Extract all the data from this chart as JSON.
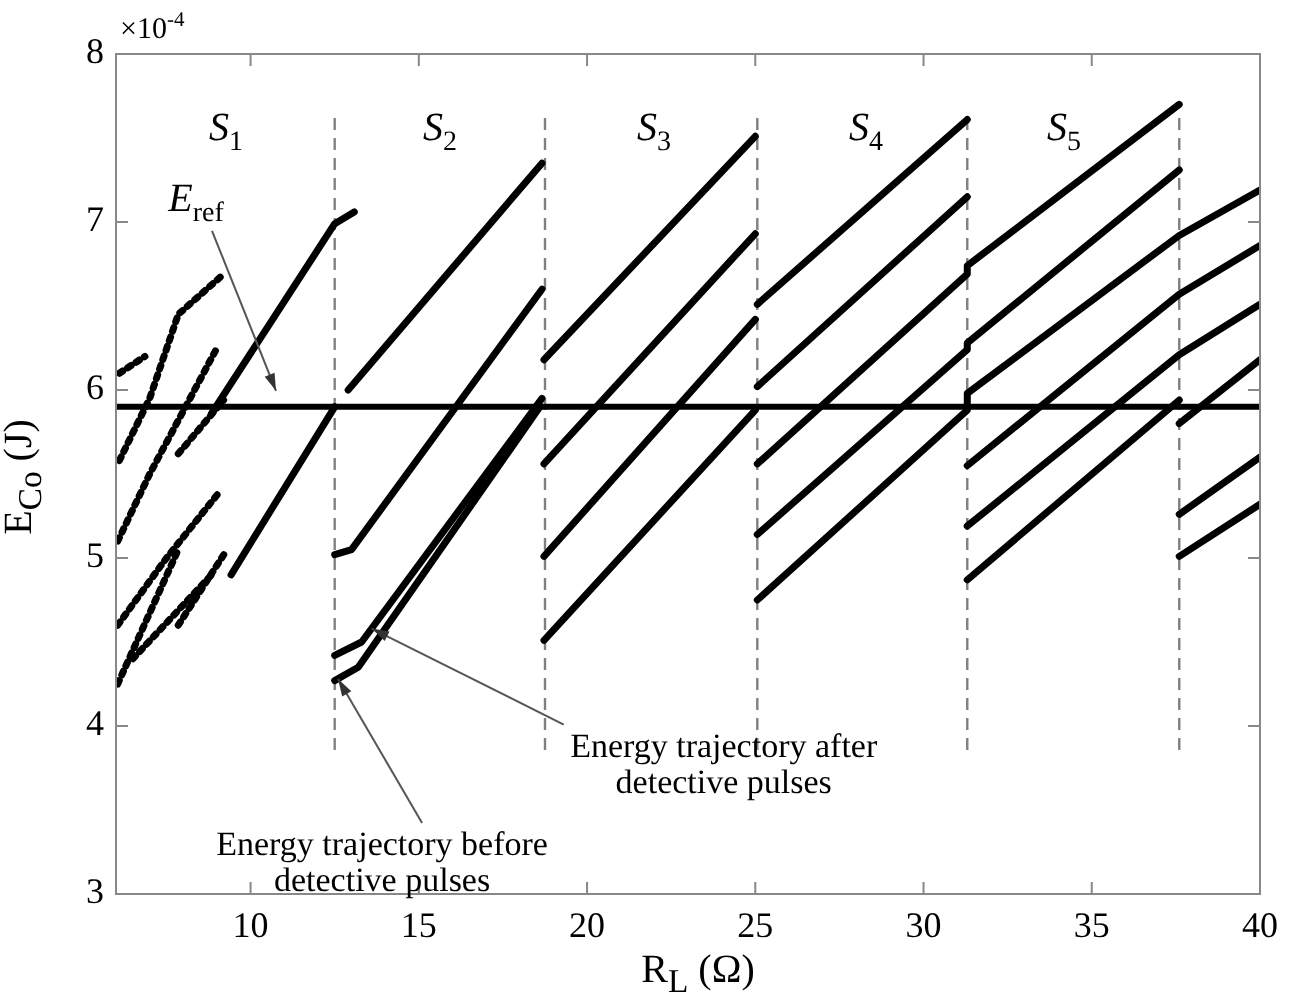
{
  "chart_data": {
    "type": "line",
    "xlabel": "R$_{L}$ (Ω)",
    "ylabel": "E$_{Co}$ (J)",
    "xlim": [
      6,
      40
    ],
    "xticks": [
      10,
      15,
      20,
      25,
      30,
      35,
      40
    ],
    "ylim": [
      3,
      8
    ],
    "yticks": [
      3,
      4,
      5,
      6,
      7,
      8
    ],
    "grid": false,
    "legend": false,
    "marker": "none",
    "series": [
      {
        "color": "#000000",
        "line_style": "dotted",
        "x": [
          6.1,
          7,
          7.85,
          9.2
        ],
        "values": [
          5.58,
          5.95,
          6.45,
          6.69
        ]
      },
      {
        "color": "#000000",
        "line_style": "dotted",
        "x": [
          6.05,
          7,
          9
        ],
        "values": [
          5.1,
          5.5,
          6.25
        ]
      },
      {
        "color": "#000000",
        "line_style": "dotted",
        "x": [
          6.1,
          6.86
        ],
        "values": [
          6.1,
          6.2
        ]
      },
      {
        "color": "#000000",
        "line_style": "dotted",
        "x": [
          7.85,
          9.2
        ],
        "values": [
          5.62,
          5.94
        ]
      },
      {
        "color": "#000000",
        "line_style": "dotted",
        "x": [
          6.05,
          7.5,
          9.1
        ],
        "values": [
          4.6,
          5.0,
          5.4
        ]
      },
      {
        "color": "#000000",
        "line_style": "dotted",
        "x": [
          6.05,
          7.85
        ],
        "values": [
          4.25,
          5.05
        ]
      },
      {
        "color": "#000000",
        "line_style": "dotted",
        "x": [
          6.5,
          8.84
        ],
        "values": [
          4.4,
          4.9
        ]
      },
      {
        "color": "#000000",
        "line_style": "dotted",
        "x": [
          7.85,
          9.3
        ],
        "values": [
          4.6,
          5.05
        ]
      },
      {
        "color": "#000000",
        "line_style": "solid",
        "x": [
          8.84,
          12.5,
          13.08
        ],
        "values": [
          5.86,
          6.99,
          7.06
        ]
      },
      {
        "color": "#000000",
        "line_style": "solid",
        "x": [
          9.42,
          12.5
        ],
        "values": [
          4.9,
          5.9
        ]
      },
      {
        "color": "#000000",
        "line_style": "solid",
        "x": [
          12.9,
          18.66
        ],
        "values": [
          6.0,
          7.35
        ]
      },
      {
        "color": "#000000",
        "line_style": "solid",
        "x": [
          12.5,
          13.0,
          18.66
        ],
        "values": [
          5.02,
          5.05,
          6.6
        ]
      },
      {
        "color": "#000000",
        "line_style": "solid",
        "x": [
          12.5,
          13.2,
          18.6
        ],
        "values": [
          4.27,
          4.35,
          5.9
        ]
      },
      {
        "color": "#000000",
        "line_style": "solid",
        "x": [
          12.5,
          13.3,
          18.66
        ],
        "values": [
          4.42,
          4.5,
          5.95
        ]
      },
      {
        "color": "#000000",
        "line_style": "solid",
        "x": [
          18.72,
          25.0
        ],
        "values": [
          6.18,
          7.51
        ]
      },
      {
        "color": "#000000",
        "line_style": "solid",
        "x": [
          18.72,
          25.0
        ],
        "values": [
          5.56,
          6.93
        ]
      },
      {
        "color": "#000000",
        "line_style": "solid",
        "x": [
          18.72,
          25.0
        ],
        "values": [
          5.01,
          6.42
        ]
      },
      {
        "color": "#000000",
        "line_style": "solid",
        "x": [
          18.72,
          25.0
        ],
        "values": [
          4.51,
          5.88
        ]
      },
      {
        "color": "#000000",
        "line_style": "solid",
        "x": [
          25.06,
          31.3
        ],
        "values": [
          6.51,
          7.61
        ]
      },
      {
        "color": "#000000",
        "line_style": "solid",
        "x": [
          25.06,
          31.3
        ],
        "values": [
          6.02,
          7.15
        ]
      },
      {
        "color": "#000000",
        "line_style": "solid",
        "x": [
          25.06,
          31.3,
          31.3,
          37.6
        ],
        "values": [
          5.56,
          6.69,
          6.74,
          7.7
        ]
      },
      {
        "color": "#000000",
        "line_style": "solid",
        "x": [
          25.06,
          31.3,
          31.3,
          37.6
        ],
        "values": [
          5.14,
          6.24,
          6.28,
          7.31
        ]
      },
      {
        "color": "#000000",
        "line_style": "solid",
        "x": [
          25.06,
          31.3,
          31.3,
          37.6,
          40
        ],
        "values": [
          4.75,
          5.88,
          5.98,
          6.92,
          7.19
        ]
      },
      {
        "color": "#000000",
        "line_style": "solid",
        "x": [
          31.3,
          37.6,
          40
        ],
        "values": [
          5.55,
          6.57,
          6.86
        ]
      },
      {
        "color": "#000000",
        "line_style": "solid",
        "x": [
          31.3,
          37.6,
          40
        ],
        "values": [
          5.19,
          6.21,
          6.51
        ]
      },
      {
        "color": "#000000",
        "line_style": "solid",
        "x": [
          31.3,
          37.6
        ],
        "values": [
          4.87,
          5.94
        ]
      },
      {
        "color": "#000000",
        "line_style": "solid",
        "x": [
          37.6,
          40
        ],
        "values": [
          5.8,
          6.18
        ]
      },
      {
        "color": "#000000",
        "line_style": "solid",
        "x": [
          37.6,
          40
        ],
        "values": [
          5.26,
          5.6
        ]
      },
      {
        "color": "#000000",
        "line_style": "solid",
        "x": [
          37.6,
          40
        ],
        "values": [
          5.01,
          5.32
        ]
      }
    ],
    "ref_lines": [
      {
        "axis": "y",
        "value": 5.9,
        "label": "E$_{ref}$",
        "color": "#000000",
        "line_style": "solid"
      },
      {
        "axis": "x",
        "value": 12.5,
        "color": "#808080",
        "line_style": "dashed"
      },
      {
        "axis": "x",
        "value": 18.75,
        "color": "#808080",
        "line_style": "dashed"
      },
      {
        "axis": "x",
        "value": 25.06,
        "color": "#808080",
        "line_style": "dashed"
      },
      {
        "axis": "x",
        "value": 31.3,
        "color": "#808080",
        "line_style": "dashed"
      },
      {
        "axis": "x",
        "value": 37.6,
        "color": "#808080",
        "line_style": "dashed"
      }
    ],
    "annotations": [
      "×10$^{-4}$",
      "S$_{1}$",
      "S$_{2}$",
      "S$_{3}$",
      "S$_{4}$",
      "S$_{5}$",
      {
        "text": "Energy trajectory before detective pulses",
        "x": 12.6,
        "y": 4.28
      },
      {
        "text": "Energy trajectory after detective pulses",
        "x": 13.6,
        "y": 4.58
      }
    ]
  }
}
